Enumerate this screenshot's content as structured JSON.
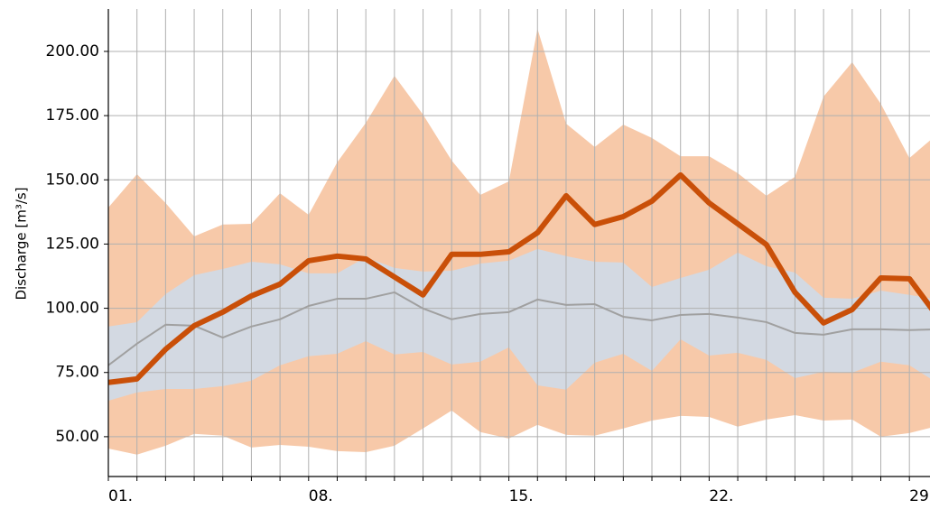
{
  "chart_data": {
    "type": "line",
    "y_label": "Discharge [m³/s]",
    "x": [
      1,
      2,
      3,
      4,
      5,
      6,
      7,
      8,
      9,
      10,
      11,
      12,
      13,
      14,
      15,
      16,
      17,
      18,
      19,
      20,
      21,
      22,
      23,
      24,
      25,
      26,
      27,
      28,
      29,
      30
    ],
    "xlim": [
      1,
      29.72
    ],
    "xticks": [
      {
        "value": 1,
        "label": "01."
      },
      {
        "value": 8,
        "label": "08."
      },
      {
        "value": 15,
        "label": "15."
      },
      {
        "value": 22,
        "label": "22."
      },
      {
        "value": 29,
        "label": "29."
      }
    ],
    "x_minor_ticks": [
      1,
      2,
      3,
      4,
      5,
      6,
      7,
      8,
      9,
      10,
      11,
      12,
      13,
      14,
      15,
      16,
      17,
      18,
      19,
      20,
      21,
      22,
      23,
      24,
      25,
      26,
      27,
      28,
      29
    ],
    "ylim": [
      34.5,
      216.5
    ],
    "yticks": [
      {
        "value": 50,
        "label": "50.00"
      },
      {
        "value": 75,
        "label": "75.00"
      },
      {
        "value": 100,
        "label": "100.00"
      },
      {
        "value": 125,
        "label": "125.00"
      },
      {
        "value": 150,
        "label": "150.00"
      },
      {
        "value": 175,
        "label": "175.00"
      },
      {
        "value": 200,
        "label": "200.00"
      }
    ],
    "grid": true,
    "bands": [
      {
        "color": "#f7c9a9",
        "upper": [
          139.2,
          152.2,
          141,
          128,
          132.6,
          132.9,
          144.8,
          136.4,
          156.8,
          172.2,
          190.5,
          175.4,
          157.5,
          144.1,
          149.4,
          208.8,
          171.9,
          162.8,
          171.5,
          166.3,
          159.2,
          159.2,
          152.6,
          143.8,
          151.2,
          182.4,
          195.8,
          179.6,
          158.5,
          168
        ],
        "lower": [
          45.4,
          43,
          46.5,
          51.1,
          50.4,
          45.8,
          46.8,
          46.1,
          44.4,
          44,
          46.5,
          53.2,
          60.2,
          51.8,
          49.3,
          54.6,
          50.7,
          50.4,
          53.2,
          56.3,
          58.1,
          57.7,
          53.9,
          56.7,
          58.4,
          56.3,
          56.7,
          50,
          51.4,
          54.2
        ]
      },
      {
        "color": "#d3d9e2",
        "upper": [
          92.9,
          94.6,
          105.5,
          112.9,
          115.3,
          118.1,
          117.1,
          113.6,
          113.6,
          119.9,
          115.7,
          114.3,
          114.6,
          117.4,
          118.5,
          123.1,
          120.3,
          118.1,
          117.8,
          108.3,
          111.8,
          115,
          121.7,
          116.4,
          113.9,
          104.1,
          103.7,
          106.9,
          105.2,
          103.4
        ],
        "lower": [
          64,
          67.2,
          68.6,
          68.6,
          69.7,
          71.8,
          77.8,
          81.3,
          82.3,
          87.2,
          82,
          83,
          78.1,
          79.2,
          84.8,
          70,
          68.3,
          78.8,
          82.3,
          75.6,
          87.9,
          81.6,
          82.7,
          79.9,
          72.8,
          75.3,
          74.9,
          79.2,
          77.8,
          70.7
        ]
      }
    ],
    "series": [
      {
        "color": "#a0a0a0",
        "line_width": 2,
        "values": [
          77.8,
          86.2,
          93.6,
          93.2,
          88.6,
          92.9,
          95.7,
          100.9,
          103.7,
          103.7,
          106.2,
          99.9,
          95.7,
          97.8,
          98.5,
          103.4,
          101.3,
          101.6,
          96.7,
          95.3,
          97.4,
          97.8,
          96.4,
          94.6,
          90.4,
          89.7,
          91.8,
          91.8,
          91.5,
          91.8
        ]
      },
      {
        "color": "#c94f08",
        "line_width": 6,
        "values": [
          71.1,
          72.5,
          84,
          93.2,
          98.5,
          104.8,
          109.4,
          118.5,
          120.3,
          119.2,
          112.2,
          105.2,
          121,
          121,
          122,
          129.4,
          143.8,
          132.6,
          135.7,
          141.7,
          151.9,
          141,
          132.9,
          124.8,
          106.2,
          94.3,
          99.5,
          111.8,
          111.5,
          96.5
        ]
      }
    ]
  }
}
